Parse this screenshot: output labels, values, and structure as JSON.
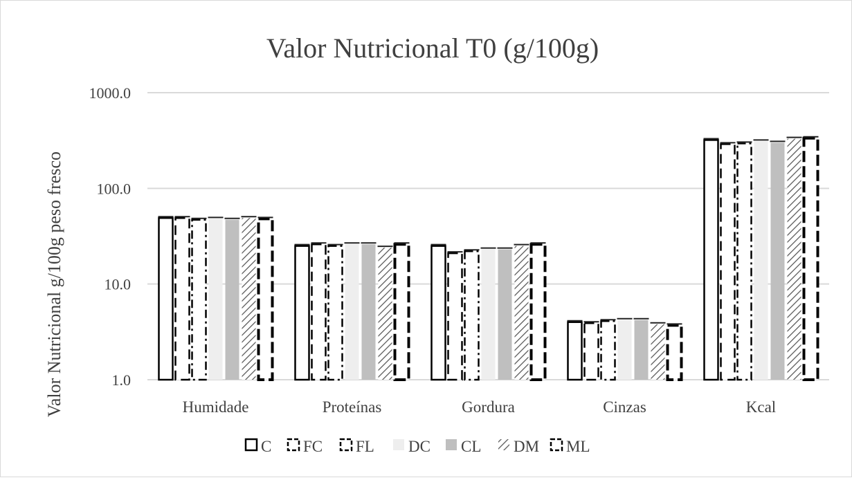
{
  "chart_data": {
    "type": "bar",
    "title": "Valor Nutricional  T0 (g/100g)",
    "xlabel": "",
    "ylabel": "Valor Nutricional g/100g peso fresco",
    "yscale": "log",
    "ylim": [
      1,
      1000
    ],
    "yticks": [
      "1000.0",
      "100.0",
      "10.0",
      "1.0"
    ],
    "grid": true,
    "legend_position": "bottom",
    "categories": [
      "Humidade",
      "Proteínas",
      "Gordura",
      "Cinzas",
      "Kcal"
    ],
    "series": [
      {
        "name": "C",
        "pattern": "white",
        "values": [
          49,
          25,
          25,
          4.0,
          320
        ]
      },
      {
        "name": "FC",
        "pattern": "dashed",
        "values": [
          49,
          26,
          21,
          3.9,
          290
        ]
      },
      {
        "name": "FL",
        "pattern": "dash-dot",
        "values": [
          47,
          25,
          22,
          4.1,
          295
        ]
      },
      {
        "name": "DC",
        "pattern": "light",
        "values": [
          48,
          26,
          23,
          4.2,
          310
        ]
      },
      {
        "name": "CL",
        "pattern": "gray",
        "values": [
          47,
          26,
          23,
          4.2,
          300
        ]
      },
      {
        "name": "DM",
        "pattern": "diagonal",
        "values": [
          49,
          24,
          25,
          3.8,
          330
        ]
      },
      {
        "name": "ML",
        "pattern": "thick-dash",
        "values": [
          48,
          26,
          26,
          3.7,
          335
        ]
      }
    ]
  },
  "colors": {
    "text": "#404040",
    "grid": "#d9d9d9",
    "outline": "#000000",
    "light": "#eeeeee",
    "gray": "#bfbfbf"
  }
}
